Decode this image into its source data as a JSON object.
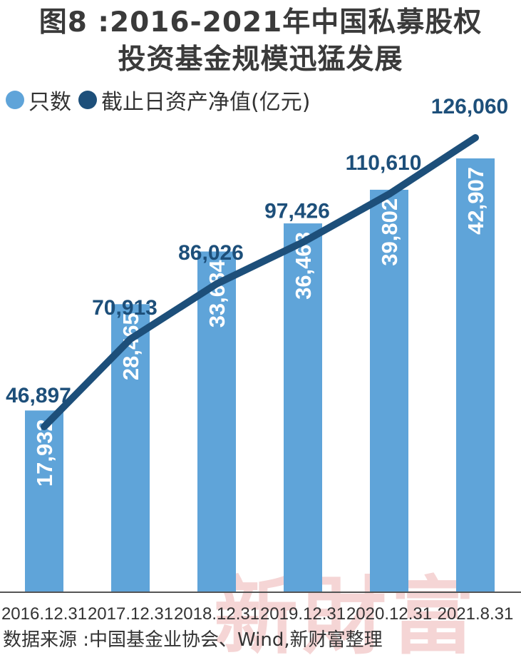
{
  "title_line1": "图8 :2016-2021年中国私募股权",
  "title_line2": "投资基金规模迅猛发展",
  "source": "数据来源 :中国基金业协会、Wind,新财富整理",
  "watermark": "新財富",
  "colors": {
    "bar": "#5fa4d9",
    "line": "#1d4f7a",
    "text": "#333333"
  },
  "chart_data": {
    "type": "bar+line",
    "categories": [
      "2016.12.31",
      "2017.12.31",
      "2018.12.31",
      "2019.12.31",
      "2020.12.31",
      "2021.8.31"
    ],
    "series": [
      {
        "name": "只数",
        "type": "bar",
        "values": [
          17932,
          28465,
          33684,
          36468,
          39802,
          42907
        ],
        "labels": [
          "17,932",
          "28,465",
          "33,684",
          "36,468",
          "39,802",
          "42,907"
        ]
      },
      {
        "name": "截止日资产净值(亿元)",
        "type": "line",
        "values": [
          46897,
          70913,
          86026,
          97426,
          110610,
          126060
        ],
        "labels": [
          "46,897",
          "70,913",
          "86,026",
          "97,426",
          "110,610",
          "126,060"
        ]
      }
    ],
    "legend_position": "top-left",
    "grid": false
  }
}
